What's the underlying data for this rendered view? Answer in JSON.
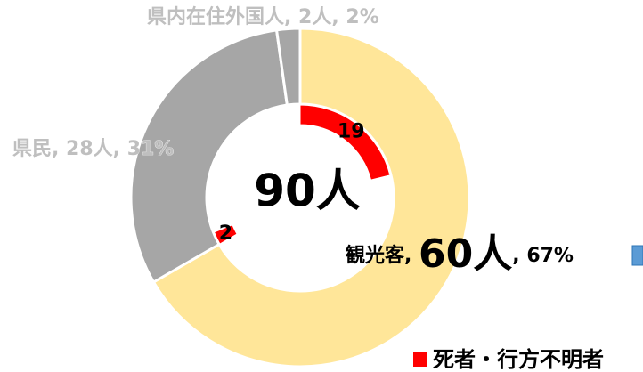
{
  "chart_data": {
    "type": "donut",
    "center_label": "90人",
    "categories": [
      "観光客",
      "県民",
      "県内在住外国人"
    ],
    "label_separator": ", ",
    "label_colors": [
      "#000000",
      "#BFBFBF",
      "#BFBFBF"
    ],
    "series": [
      {
        "values": [
          60,
          28,
          2
        ],
        "value_labels": [
          "60人",
          "28人",
          "2人"
        ],
        "percents": [
          67,
          31,
          2
        ],
        "percent_labels": [
          "67%",
          "31%",
          "2%"
        ],
        "colors": [
          "#FFE699",
          "#A6A6A6",
          "#A6A6A6"
        ]
      },
      {
        "name": "死者・行方不明者",
        "color": "#FF0000",
        "values": [
          19,
          2,
          null
        ]
      }
    ]
  }
}
